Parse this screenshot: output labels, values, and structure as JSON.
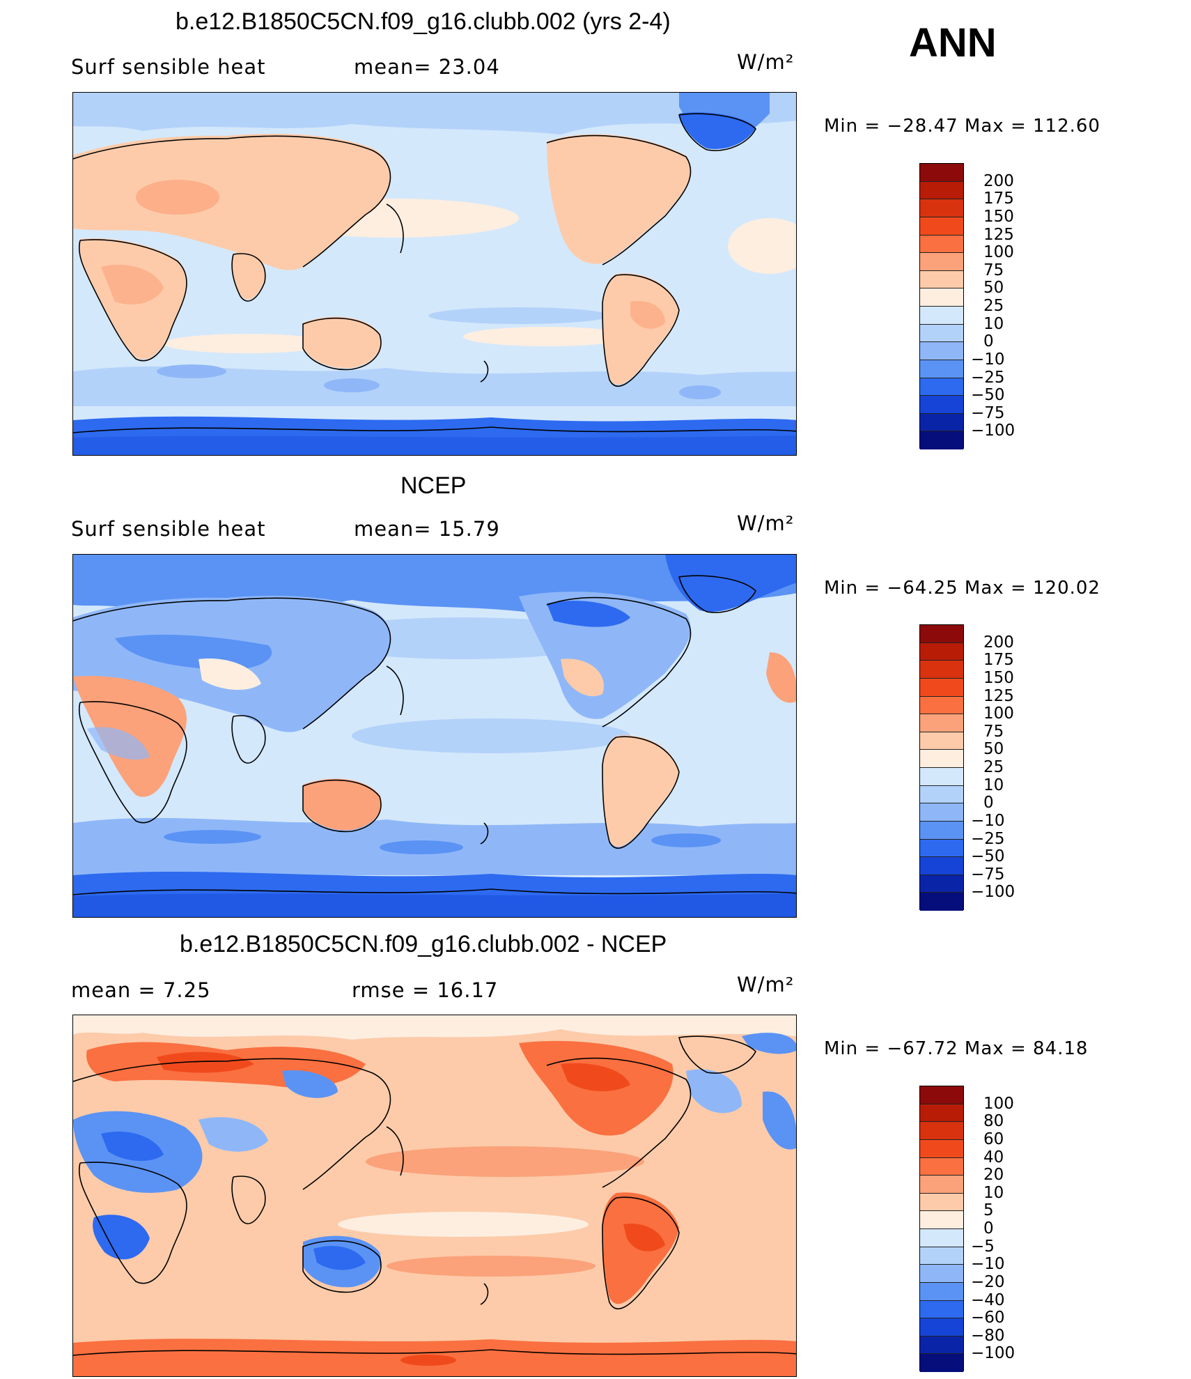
{
  "season": "ANN",
  "panels": [
    {
      "title": "b.e12.B1850C5CN.f09_g16.clubb.002 (yrs 2-4)",
      "left_label": "Surf  sensible  heat",
      "stat_label": "mean=   23.04",
      "units": "W/m²",
      "minmax": "Min  =  −28.47  Max  =  112.60",
      "levels": [
        "200",
        "175",
        "150",
        "125",
        "100",
        "75",
        "50",
        "25",
        "10",
        "0",
        "−10",
        "−25",
        "−50",
        "−75",
        "−100"
      ],
      "colors": [
        "#8c0a0a",
        "#b81c06",
        "#d8320f",
        "#f04a1c",
        "#fa7040",
        "#fba27a",
        "#fdcbaa",
        "#fdeee0",
        "#d4e8fb",
        "#b3d2fa",
        "#8fb7f8",
        "#5b93f4",
        "#2d6af0",
        "#1544d6",
        "#0a24a8",
        "#050e7a"
      ]
    },
    {
      "title": "NCEP",
      "left_label": "Surf  sensible  heat",
      "stat_label": "mean=   15.79",
      "units": "W/m²",
      "minmax": "Min  =  −64.25  Max  =  120.02",
      "levels": [
        "200",
        "175",
        "150",
        "125",
        "100",
        "75",
        "50",
        "25",
        "10",
        "0",
        "−10",
        "−25",
        "−50",
        "−75",
        "−100"
      ],
      "colors": [
        "#8c0a0a",
        "#b81c06",
        "#d8320f",
        "#f04a1c",
        "#fa7040",
        "#fba27a",
        "#fdcbaa",
        "#fdeee0",
        "#d4e8fb",
        "#b3d2fa",
        "#8fb7f8",
        "#5b93f4",
        "#2d6af0",
        "#1544d6",
        "#0a24a8",
        "#050e7a"
      ]
    },
    {
      "title": "b.e12.B1850C5CN.f09_g16.clubb.002 - NCEP",
      "left_label": "mean  =      7.25",
      "stat_label": "rmse  =    16.17",
      "units": "W/m²",
      "minmax": "Min  =  −67.72  Max  =    84.18",
      "levels": [
        "100",
        "80",
        "60",
        "40",
        "20",
        "10",
        "5",
        "0",
        "−5",
        "−10",
        "−20",
        "−40",
        "−60",
        "−80",
        "−100"
      ],
      "colors": [
        "#8c0a0a",
        "#b81c06",
        "#d8320f",
        "#f04a1c",
        "#fa7040",
        "#fba27a",
        "#fdcbaa",
        "#fdeee0",
        "#d4e8fb",
        "#b3d2fa",
        "#8fb7f8",
        "#5b93f4",
        "#2d6af0",
        "#1544d6",
        "#0a24a8",
        "#050e7a"
      ]
    }
  ],
  "field_colors": {
    "ocean_mid": "#d4e8fb",
    "ocean_low": "#b3d2fa",
    "cold_band": "#5b93f4",
    "antarctic": "#2d6af0",
    "land_warm": "#fdcbaa",
    "land_hot": "#fba27a",
    "diff_base": "#fdcbaa",
    "diff_hot": "#fa7040",
    "diff_cold": "#5b93f4",
    "coast": "#000000"
  }
}
